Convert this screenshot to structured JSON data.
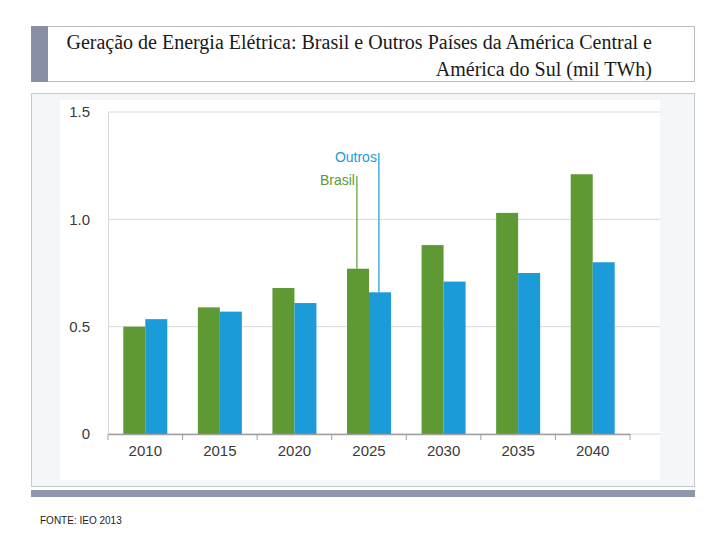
{
  "chart_data": {
    "type": "bar",
    "title": "Geração de Energia Elétrica: Brasil e Outros Países da América Central e América do Sul (mil TWh)",
    "source": "FONTE: IEO 2013",
    "categories": [
      "2010",
      "2015",
      "2020",
      "2025",
      "2030",
      "2035",
      "2040"
    ],
    "series": [
      {
        "name": "Brasil",
        "color": "#5e9933",
        "values": [
          0.5,
          0.59,
          0.68,
          0.77,
          0.88,
          1.03,
          1.21
        ]
      },
      {
        "name": "Outros",
        "color": "#1b9bd7",
        "values": [
          0.535,
          0.57,
          0.61,
          0.66,
          0.71,
          0.75,
          0.8
        ]
      }
    ],
    "ylim": [
      0,
      1.5
    ],
    "yticks": [
      0,
      0.5,
      {
        "value": 1,
        "label": "1.0"
      },
      1.5
    ],
    "grid": true
  }
}
